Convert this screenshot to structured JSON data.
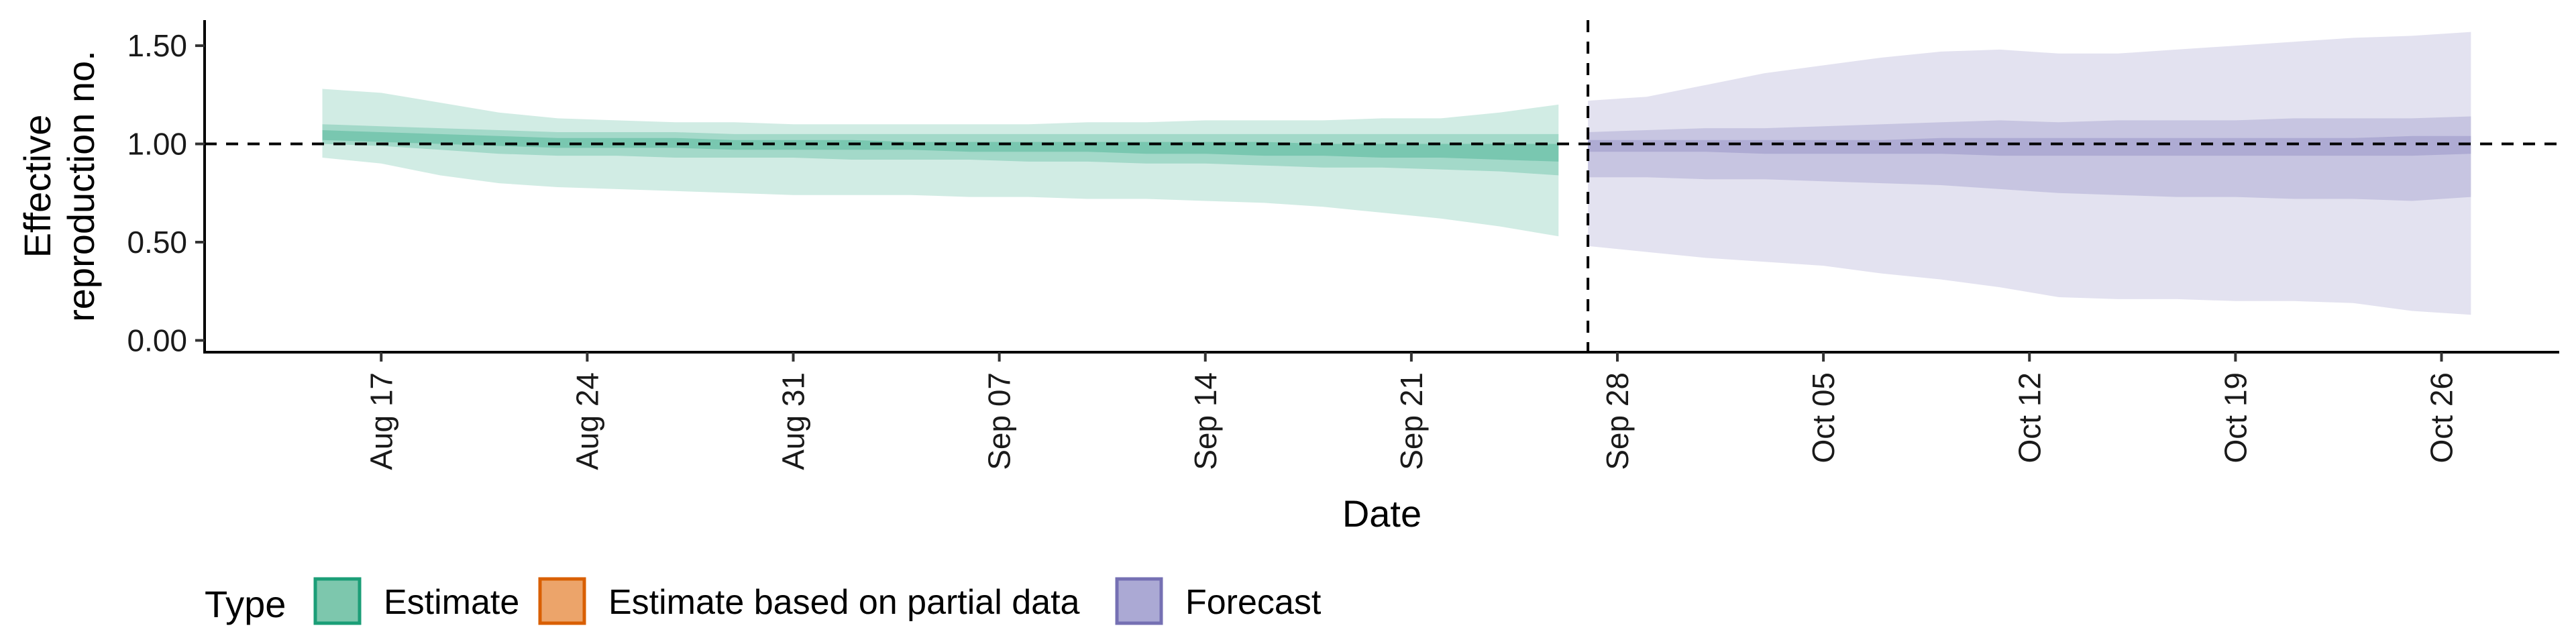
{
  "chart_data": {
    "type": "area",
    "xlabel": "Date",
    "ylabel_lines": [
      "Effective",
      "reproduction no."
    ],
    "ylim": [
      -0.06,
      1.63
    ],
    "xlim": [
      "2020-08-11",
      "2020-10-30"
    ],
    "yticks": [
      {
        "value": 0.0,
        "label": "0.00"
      },
      {
        "value": 0.5,
        "label": "0.50"
      },
      {
        "value": 1.0,
        "label": "1.00"
      },
      {
        "value": 1.5,
        "label": "1.50"
      }
    ],
    "xticks": [
      {
        "date": "2020-08-17",
        "label": "Aug 17"
      },
      {
        "date": "2020-08-24",
        "label": "Aug 24"
      },
      {
        "date": "2020-08-31",
        "label": "Aug 31"
      },
      {
        "date": "2020-09-07",
        "label": "Sep 07"
      },
      {
        "date": "2020-09-14",
        "label": "Sep 14"
      },
      {
        "date": "2020-09-21",
        "label": "Sep 21"
      },
      {
        "date": "2020-09-28",
        "label": "Sep 28"
      },
      {
        "date": "2020-10-05",
        "label": "Oct 05"
      },
      {
        "date": "2020-10-12",
        "label": "Oct 12"
      },
      {
        "date": "2020-10-19",
        "label": "Oct 19"
      },
      {
        "date": "2020-10-26",
        "label": "Oct 26"
      }
    ],
    "reference_lines": {
      "horizontal_y": 1.0,
      "vertical_date": "2020-09-27"
    },
    "series": [
      {
        "name": "Estimate",
        "color": "#1b9e77",
        "x": [
          "2020-08-15",
          "2020-08-17",
          "2020-08-19",
          "2020-08-21",
          "2020-08-23",
          "2020-08-25",
          "2020-08-27",
          "2020-08-29",
          "2020-08-31",
          "2020-09-02",
          "2020-09-04",
          "2020-09-06",
          "2020-09-08",
          "2020-09-10",
          "2020-09-12",
          "2020-09-14",
          "2020-09-16",
          "2020-09-18",
          "2020-09-20",
          "2020-09-22",
          "2020-09-24",
          "2020-09-26"
        ],
        "lower_90": [
          0.93,
          0.9,
          0.84,
          0.8,
          0.78,
          0.77,
          0.76,
          0.75,
          0.74,
          0.74,
          0.74,
          0.73,
          0.73,
          0.72,
          0.72,
          0.71,
          0.7,
          0.68,
          0.65,
          0.62,
          0.58,
          0.53
        ],
        "upper_90": [
          1.28,
          1.26,
          1.21,
          1.16,
          1.13,
          1.12,
          1.11,
          1.11,
          1.1,
          1.1,
          1.1,
          1.1,
          1.1,
          1.11,
          1.11,
          1.12,
          1.12,
          1.12,
          1.13,
          1.13,
          1.16,
          1.2
        ],
        "lower_50": [
          1.0,
          0.99,
          0.97,
          0.95,
          0.94,
          0.94,
          0.93,
          0.93,
          0.93,
          0.92,
          0.92,
          0.92,
          0.91,
          0.91,
          0.9,
          0.9,
          0.89,
          0.88,
          0.88,
          0.87,
          0.86,
          0.84
        ],
        "upper_50": [
          1.1,
          1.09,
          1.08,
          1.07,
          1.06,
          1.06,
          1.06,
          1.05,
          1.05,
          1.05,
          1.05,
          1.05,
          1.05,
          1.05,
          1.05,
          1.05,
          1.05,
          1.05,
          1.05,
          1.05,
          1.05,
          1.05
        ],
        "lower_20": [
          1.02,
          1.01,
          1.0,
          0.99,
          0.98,
          0.98,
          0.98,
          0.97,
          0.97,
          0.97,
          0.97,
          0.96,
          0.96,
          0.96,
          0.95,
          0.95,
          0.94,
          0.94,
          0.93,
          0.93,
          0.92,
          0.91
        ],
        "upper_20": [
          1.07,
          1.06,
          1.05,
          1.04,
          1.03,
          1.03,
          1.03,
          1.02,
          1.02,
          1.02,
          1.01,
          1.01,
          1.01,
          1.01,
          1.01,
          1.01,
          1.01,
          1.0,
          1.0,
          1.0,
          1.0,
          1.0
        ]
      },
      {
        "name": "Estimate based on partial data",
        "color": "#d95f02",
        "x": [],
        "lower_90": [],
        "upper_90": [],
        "lower_50": [],
        "upper_50": [],
        "lower_20": [],
        "upper_20": []
      },
      {
        "name": "Forecast",
        "color": "#7570b3",
        "x": [
          "2020-09-27",
          "2020-09-29",
          "2020-10-01",
          "2020-10-03",
          "2020-10-05",
          "2020-10-07",
          "2020-10-09",
          "2020-10-11",
          "2020-10-13",
          "2020-10-15",
          "2020-10-17",
          "2020-10-19",
          "2020-10-21",
          "2020-10-23",
          "2020-10-25",
          "2020-10-27"
        ],
        "lower_90": [
          0.48,
          0.45,
          0.42,
          0.4,
          0.38,
          0.34,
          0.31,
          0.27,
          0.22,
          0.21,
          0.21,
          0.2,
          0.2,
          0.19,
          0.15,
          0.13
        ],
        "upper_90": [
          1.22,
          1.24,
          1.3,
          1.36,
          1.4,
          1.44,
          1.47,
          1.48,
          1.46,
          1.46,
          1.48,
          1.5,
          1.52,
          1.54,
          1.55,
          1.57
        ],
        "lower_50": [
          0.83,
          0.83,
          0.82,
          0.82,
          0.81,
          0.8,
          0.79,
          0.77,
          0.75,
          0.74,
          0.73,
          0.73,
          0.72,
          0.72,
          0.71,
          0.73
        ],
        "upper_50": [
          1.06,
          1.07,
          1.08,
          1.08,
          1.09,
          1.1,
          1.11,
          1.12,
          1.11,
          1.12,
          1.12,
          1.12,
          1.13,
          1.13,
          1.13,
          1.14
        ],
        "lower_20": [
          0.96,
          0.96,
          0.96,
          0.95,
          0.95,
          0.95,
          0.95,
          0.94,
          0.94,
          0.94,
          0.94,
          0.94,
          0.94,
          0.94,
          0.94,
          0.95
        ],
        "upper_20": [
          1.02,
          1.02,
          1.02,
          1.02,
          1.02,
          1.02,
          1.03,
          1.03,
          1.03,
          1.03,
          1.03,
          1.03,
          1.03,
          1.03,
          1.04,
          1.04
        ]
      }
    ],
    "legend": {
      "title": "Type",
      "position": "bottom-left",
      "items": [
        {
          "label": "Estimate",
          "fill": "#7dc7ad",
          "stroke": "#1b9e77"
        },
        {
          "label": "Estimate based on partial data",
          "fill": "#eca46a",
          "stroke": "#d95f02"
        },
        {
          "label": "Forecast",
          "fill": "#aba9d4",
          "stroke": "#7570b3"
        }
      ]
    }
  }
}
